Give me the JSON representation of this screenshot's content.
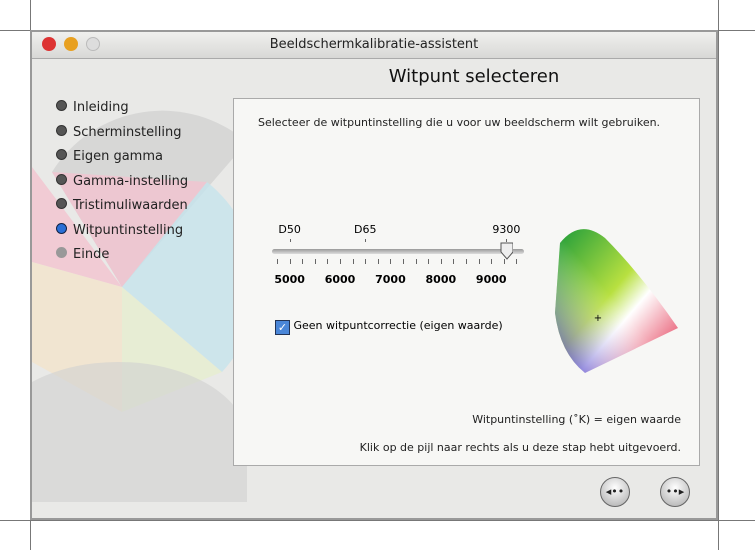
{
  "window": {
    "title": "Beeldschermkalibratie-assistent",
    "heading": "Witpunt selecteren"
  },
  "sidebar": {
    "items": [
      {
        "label": "Inleiding",
        "state": "done"
      },
      {
        "label": "Scherminstelling",
        "state": "done"
      },
      {
        "label": "Eigen gamma",
        "state": "done"
      },
      {
        "label": "Gamma-instelling",
        "state": "done"
      },
      {
        "label": "Tristimuliwaarden",
        "state": "done"
      },
      {
        "label": "Witpuntinstelling",
        "state": "current"
      },
      {
        "label": "Einde",
        "state": "pending"
      }
    ]
  },
  "main": {
    "instruction": "Selecteer de witpuntinstelling die u voor uw beeldscherm wilt gebruiken.",
    "slider": {
      "presets": [
        {
          "label": "D50",
          "value": 5000
        },
        {
          "label": "D65",
          "value": 6500
        },
        {
          "label": "9300",
          "value": 9300
        }
      ],
      "scale": [
        "5000",
        "6000",
        "7000",
        "8000",
        "9000"
      ],
      "min": 4650,
      "max": 9650,
      "value": 9300
    },
    "checkbox": {
      "label": "Geen witpuntcorrectie (eigen waarde)",
      "checked": true
    },
    "status": "Witpuntinstelling (˚K) = eigen waarde",
    "hint": "Klik op de pijl naar rechts als u deze stap hebt uitgevoerd."
  },
  "nav": {
    "back_icon": "back-arrow-icon",
    "forward_icon": "forward-arrow-icon"
  },
  "colors": {
    "current": "#2a6fd6",
    "close": "#d33",
    "minimize": "#e8a020"
  }
}
